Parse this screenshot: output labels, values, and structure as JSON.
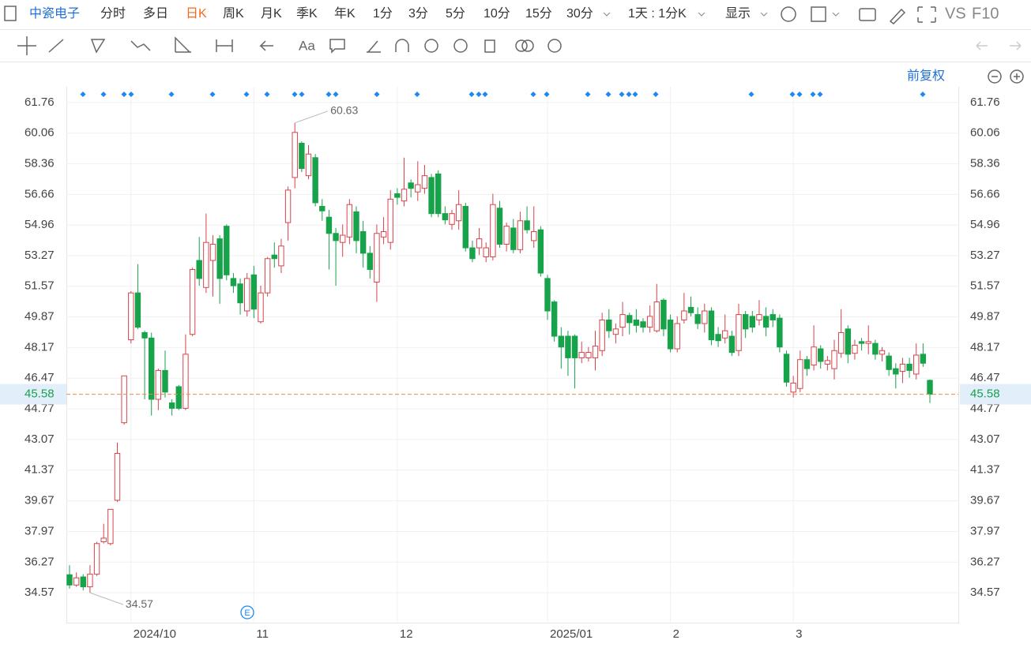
{
  "toolbar": {
    "stock": "中瓷电子",
    "periods": [
      "分时",
      "多日",
      "日K",
      "周K",
      "月K",
      "季K",
      "年K",
      "1分",
      "3分",
      "5分",
      "10分",
      "15分",
      "30分"
    ],
    "range": "1天 : 1分K",
    "display": "显示",
    "vs": "VS",
    "f10": "F10"
  },
  "adjust_mode": "前复权",
  "chart_data": {
    "type": "candlestick",
    "categories": [
      null,
      null,
      null,
      null,
      null,
      null,
      null,
      null,
      null,
      "2024/10",
      null,
      null,
      null,
      null,
      null,
      null,
      null,
      null,
      null,
      null,
      null,
      null,
      null,
      null,
      null,
      null,
      null,
      "11",
      null,
      null,
      null,
      null,
      null,
      null,
      null,
      null,
      null,
      null,
      null,
      null,
      null,
      null,
      null,
      null,
      null,
      null,
      null,
      null,
      "12",
      null,
      null,
      null,
      null,
      null,
      null,
      null,
      null,
      null,
      null,
      null,
      null,
      null,
      null,
      null,
      null,
      null,
      null,
      null,
      null,
      null,
      "2025/01",
      null,
      null,
      null,
      null,
      null,
      null,
      null,
      null,
      null,
      null,
      null,
      null,
      null,
      null,
      null,
      null,
      null,
      "2",
      null,
      null,
      null,
      null,
      null,
      null,
      null,
      null,
      null,
      null,
      null,
      null,
      null,
      null,
      null,
      null,
      null,
      "3",
      null,
      null,
      null,
      null,
      null,
      null,
      null,
      null,
      null,
      null,
      null,
      null,
      null,
      null,
      null,
      null,
      null,
      null,
      null,
      null
    ],
    "open": [
      35.57,
      35.0,
      35.45,
      34.9,
      35.6,
      37.4,
      37.3,
      39.7,
      44.0,
      48.6,
      51.2,
      49.0,
      48.7,
      45.3,
      46.9,
      45.1,
      46.0,
      44.8,
      48.9,
      53.0,
      51.5,
      53.0,
      54.2,
      54.9,
      52.0,
      51.7,
      50.2,
      52.2,
      49.6,
      51.2,
      53.3,
      52.7,
      55.1,
      57.6,
      59.5,
      57.7,
      58.7,
      56.0,
      55.4,
      54.5,
      54.0,
      54.3,
      55.7,
      54.6,
      53.4,
      51.8,
      54.3,
      54.0,
      56.7,
      56.3,
      57.3,
      56.8,
      57.0,
      57.6,
      57.8,
      55.6,
      55.0,
      55.2,
      56.0,
      53.7,
      53.7,
      53.2,
      53.2,
      55.9,
      53.9,
      54.8,
      53.6,
      55.2,
      54.1,
      54.7,
      52.0,
      50.7,
      48.8,
      48.8,
      48.8,
      47.6,
      47.6,
      47.6,
      48.0,
      49.7,
      48.9,
      49.3,
      49.95,
      49.7,
      49.6,
      49.3,
      49.1,
      50.8,
      49.7,
      48.1,
      49.7,
      50.4,
      50.0,
      49.5,
      50.2,
      48.9,
      48.7,
      48.8,
      48.0,
      50.0,
      49.9,
      49.7,
      49.9,
      50.0,
      49.8,
      47.8,
      45.7,
      45.9,
      47.5,
      47.2,
      48.1,
      47.25,
      47.0,
      47.85,
      49.2,
      47.85,
      48.5,
      48.4,
      48.4,
      47.8,
      47.7,
      47.0,
      46.85,
      47.25,
      46.7,
      47.8,
      46.35
    ],
    "high": [
      36.1,
      35.7,
      35.6,
      36.1,
      37.4,
      38.4,
      39.2,
      42.9,
      46.6,
      51.3,
      52.8,
      49.1,
      49.0,
      47.0,
      48.0,
      45.3,
      46.1,
      48.9,
      52.6,
      54.3,
      55.6,
      54.4,
      54.4,
      55.0,
      52.3,
      52.0,
      52.3,
      52.7,
      51.6,
      53.2,
      54.0,
      54.2,
      57.1,
      60.63,
      59.6,
      59.4,
      58.9,
      56.4,
      55.8,
      54.8,
      55.0,
      56.4,
      56.0,
      55.2,
      53.8,
      55.0,
      55.4,
      56.9,
      57.0,
      58.7,
      57.5,
      58.5,
      58.3,
      57.8,
      58.0,
      56.0,
      55.8,
      56.9,
      56.2,
      54.1,
      54.8,
      54.0,
      56.7,
      56.3,
      55.1,
      55.3,
      55.7,
      56.0,
      56.0,
      54.9,
      52.2,
      50.8,
      49.3,
      49.1,
      48.9,
      48.5,
      48.2,
      49.1,
      50.1,
      50.3,
      49.5,
      50.7,
      50.1,
      50.3,
      49.8,
      50.5,
      51.7,
      50.9,
      50.0,
      49.9,
      51.2,
      51.0,
      50.4,
      50.6,
      50.4,
      49.3,
      50.0,
      49.1,
      50.6,
      50.2,
      50.2,
      50.8,
      50.4,
      50.3,
      50.0,
      48.0,
      46.6,
      48.0,
      47.7,
      49.4,
      48.3,
      47.7,
      48.6,
      50.3,
      49.4,
      48.6,
      48.7,
      49.4,
      48.6,
      48.2,
      47.9,
      47.3,
      47.6,
      47.6,
      48.4,
      48.4,
      46.4
    ],
    "low": [
      34.8,
      34.9,
      34.7,
      34.57,
      35.5,
      37.3,
      37.2,
      39.6,
      43.9,
      48.4,
      49.2,
      45.3,
      44.4,
      44.7,
      45.4,
      44.4,
      44.7,
      44.7,
      48.8,
      51.6,
      51.2,
      51.0,
      50.6,
      51.9,
      51.2,
      50.0,
      49.9,
      49.8,
      49.5,
      51.0,
      52.6,
      52.3,
      54.1,
      57.0,
      57.9,
      57.5,
      56.0,
      55.2,
      52.5,
      51.6,
      53.2,
      53.9,
      53.4,
      52.6,
      52.0,
      50.7,
      53.9,
      53.6,
      56.1,
      56.0,
      56.5,
      56.3,
      56.7,
      55.4,
      55.4,
      55.0,
      54.7,
      54.7,
      53.5,
      52.9,
      53.3,
      52.9,
      53.0,
      53.7,
      53.5,
      53.4,
      53.4,
      54.5,
      53.7,
      52.1,
      49.7,
      48.5,
      47.0,
      46.6,
      45.9,
      47.3,
      47.4,
      46.9,
      47.7,
      48.7,
      48.4,
      48.8,
      48.9,
      49.0,
      49.0,
      49.0,
      49.0,
      48.8,
      47.9,
      47.9,
      49.5,
      49.9,
      49.2,
      49.0,
      48.3,
      48.2,
      48.4,
      47.7,
      47.7,
      48.7,
      49.0,
      49.4,
      48.8,
      49.3,
      47.9,
      46.0,
      45.4,
      45.7,
      46.6,
      46.9,
      47.0,
      46.9,
      46.4,
      47.6,
      47.3,
      47.5,
      48.0,
      47.8,
      47.5,
      47.4,
      46.6,
      45.9,
      46.2,
      46.5,
      46.4,
      47.1,
      45.1
    ],
    "close": [
      35.0,
      35.4,
      34.9,
      35.6,
      37.3,
      37.6,
      39.2,
      42.3,
      46.6,
      51.2,
      49.3,
      48.7,
      45.3,
      46.9,
      45.7,
      44.8,
      44.8,
      47.8,
      52.5,
      52.0,
      54.0,
      53.9,
      52.0,
      52.2,
      51.6,
      50.65,
      52.0,
      50.3,
      51.2,
      53.1,
      53.1,
      53.8,
      56.9,
      60.1,
      58.1,
      58.9,
      56.2,
      55.75,
      54.5,
      54.1,
      54.4,
      56.1,
      54.1,
      53.4,
      52.5,
      54.5,
      54.6,
      56.4,
      56.5,
      56.95,
      57.0,
      57.2,
      57.7,
      55.6,
      55.6,
      55.25,
      55.6,
      56.1,
      53.7,
      53.1,
      54.2,
      53.7,
      56.1,
      53.9,
      54.9,
      53.6,
      55.2,
      54.7,
      54.6,
      52.3,
      50.2,
      48.8,
      48.2,
      47.6,
      47.6,
      47.9,
      47.9,
      48.25,
      49.7,
      49.1,
      49.2,
      50.0,
      49.55,
      49.4,
      49.3,
      49.9,
      50.7,
      49.2,
      48.1,
      49.5,
      50.2,
      50.1,
      49.5,
      50.2,
      48.6,
      48.55,
      49.1,
      47.9,
      50.0,
      49.2,
      49.3,
      50.0,
      49.3,
      49.7,
      48.2,
      46.25,
      46.2,
      47.5,
      47.0,
      48.2,
      47.4,
      47.45,
      48.0,
      49.0,
      47.8,
      48.3,
      48.4,
      48.5,
      47.8,
      48.0,
      46.95,
      46.7,
      47.25,
      46.9,
      47.75,
      47.3,
      45.58
    ],
    "up_color": "#d9434a",
    "down_color": "#16a34a",
    "ylim": [
      32.87,
      62.63
    ],
    "yticks": [
      61.76,
      60.06,
      58.36,
      56.66,
      54.96,
      53.27,
      51.57,
      49.87,
      48.17,
      46.47,
      44.77,
      43.07,
      41.37,
      39.67,
      37.97,
      36.27,
      34.57
    ],
    "annotations": [
      60.63,
      34.57
    ],
    "last_price": 45.58,
    "event_marker": "E",
    "grid": true
  }
}
